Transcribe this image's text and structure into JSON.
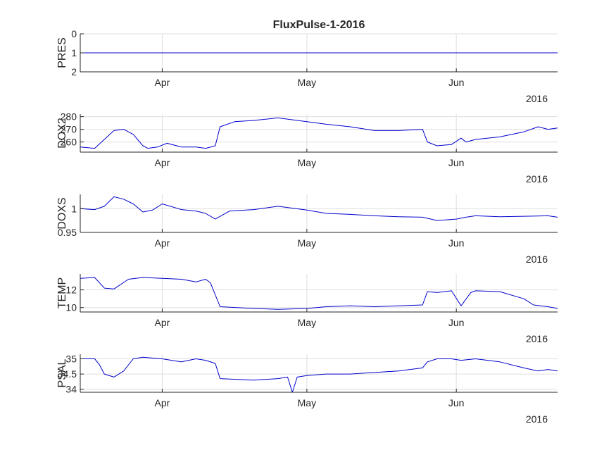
{
  "figure": {
    "title": "FluxPulse-1-2016",
    "year_label": "2016",
    "line_color": "#0000cc",
    "grid_color": "#dfdfdf",
    "axis_color": "#262626"
  },
  "chart_data": [
    {
      "type": "line",
      "ylabel": "PRES",
      "ylim": [
        0,
        2
      ],
      "y_reverse": true,
      "yticks": [
        0,
        1,
        2
      ],
      "ytick_labels": [
        "0",
        "1",
        "2"
      ],
      "x_range": [
        "2016-03-15",
        "2016-06-22"
      ],
      "xticks": [
        "2016-04-01",
        "2016-05-01",
        "2016-06-01"
      ],
      "xtick_labels": [
        "Apr",
        "May",
        "Jun"
      ],
      "grid": true,
      "series": [
        {
          "x": [
            "2016-03-15",
            "2016-06-22"
          ],
          "y": [
            1,
            1
          ]
        }
      ]
    },
    {
      "type": "line",
      "ylabel": "DOX2",
      "ylim": [
        252,
        282
      ],
      "y_reverse": false,
      "yticks": [
        260,
        270,
        280
      ],
      "ytick_labels": [
        "260",
        "270",
        "280"
      ],
      "x_range": [
        "2016-03-15",
        "2016-06-22"
      ],
      "xticks": [
        "2016-04-01",
        "2016-05-01",
        "2016-06-01"
      ],
      "xtick_labels": [
        "Apr",
        "May",
        "Jun"
      ],
      "grid": true,
      "series": [
        {
          "x": [
            "2016-03-15",
            "2016-03-18",
            "2016-03-20",
            "2016-03-22",
            "2016-03-24",
            "2016-03-26",
            "2016-03-28",
            "2016-03-29",
            "2016-03-31",
            "2016-04-02",
            "2016-04-05",
            "2016-04-08",
            "2016-04-10",
            "2016-04-12",
            "2016-04-13",
            "2016-04-16",
            "2016-04-20",
            "2016-04-25",
            "2016-05-01",
            "2016-05-05",
            "2016-05-10",
            "2016-05-15",
            "2016-05-20",
            "2016-05-25",
            "2016-05-26",
            "2016-05-28",
            "2016-05-31",
            "2016-06-02",
            "2016-06-03",
            "2016-06-05",
            "2016-06-10",
            "2016-06-15",
            "2016-06-18",
            "2016-06-20",
            "2016-06-22"
          ],
          "y": [
            256,
            255,
            262,
            269,
            270,
            266,
            257,
            255,
            256,
            259,
            256,
            256,
            255,
            257,
            272,
            276,
            277,
            279,
            276,
            274,
            272,
            269,
            269,
            270,
            260,
            257,
            258,
            263,
            260,
            262,
            264,
            268,
            272,
            270,
            271
          ]
        }
      ]
    },
    {
      "type": "line",
      "ylabel": "DOXS",
      "ylim": [
        0.95,
        1.03
      ],
      "y_reverse": false,
      "yticks": [
        0.95,
        1
      ],
      "ytick_labels": [
        "0.95",
        "1"
      ],
      "x_range": [
        "2016-03-15",
        "2016-06-22"
      ],
      "xticks": [
        "2016-04-01",
        "2016-05-01",
        "2016-06-01"
      ],
      "xtick_labels": [
        "Apr",
        "May",
        "Jun"
      ],
      "grid": true,
      "series": [
        {
          "x": [
            "2016-03-15",
            "2016-03-18",
            "2016-03-20",
            "2016-03-22",
            "2016-03-24",
            "2016-03-26",
            "2016-03-28",
            "2016-03-30",
            "2016-04-01",
            "2016-04-05",
            "2016-04-08",
            "2016-04-10",
            "2016-04-12",
            "2016-04-15",
            "2016-04-20",
            "2016-04-25",
            "2016-05-01",
            "2016-05-05",
            "2016-05-10",
            "2016-05-15",
            "2016-05-20",
            "2016-05-25",
            "2016-05-28",
            "2016-06-01",
            "2016-06-03",
            "2016-06-05",
            "2016-06-10",
            "2016-06-15",
            "2016-06-20",
            "2016-06-22"
          ],
          "y": [
            1.0,
            0.998,
            1.005,
            1.025,
            1.02,
            1.01,
            0.993,
            0.997,
            1.01,
            0.998,
            0.995,
            0.99,
            0.978,
            0.995,
            0.998,
            1.005,
            0.997,
            0.99,
            0.988,
            0.985,
            0.983,
            0.982,
            0.975,
            0.978,
            0.982,
            0.985,
            0.983,
            0.984,
            0.985,
            0.982
          ]
        }
      ]
    },
    {
      "type": "line",
      "ylabel": "TEMP",
      "ylim": [
        9.5,
        13.8
      ],
      "y_reverse": false,
      "yticks": [
        10,
        12
      ],
      "ytick_labels": [
        "10",
        "12"
      ],
      "x_range": [
        "2016-03-15",
        "2016-06-22"
      ],
      "xticks": [
        "2016-04-01",
        "2016-05-01",
        "2016-06-01"
      ],
      "xtick_labels": [
        "Apr",
        "May",
        "Jun"
      ],
      "grid": true,
      "series": [
        {
          "x": [
            "2016-03-15",
            "2016-03-18",
            "2016-03-20",
            "2016-03-22",
            "2016-03-25",
            "2016-03-28",
            "2016-04-01",
            "2016-04-05",
            "2016-04-08",
            "2016-04-10",
            "2016-04-11",
            "2016-04-13",
            "2016-04-20",
            "2016-04-25",
            "2016-05-01",
            "2016-05-05",
            "2016-05-10",
            "2016-05-15",
            "2016-05-20",
            "2016-05-25",
            "2016-05-26",
            "2016-05-28",
            "2016-05-31",
            "2016-06-02",
            "2016-06-04",
            "2016-06-05",
            "2016-06-10",
            "2016-06-15",
            "2016-06-17",
            "2016-06-20",
            "2016-06-22"
          ],
          "y": [
            13.3,
            13.4,
            12.2,
            12.1,
            13.2,
            13.4,
            13.3,
            13.2,
            12.9,
            13.2,
            12.8,
            10.1,
            9.9,
            9.8,
            9.9,
            10.1,
            10.2,
            10.1,
            10.2,
            10.3,
            11.8,
            11.7,
            11.9,
            10.2,
            11.7,
            11.9,
            11.8,
            11.0,
            10.3,
            10.1,
            9.9
          ]
        }
      ]
    },
    {
      "type": "line",
      "ylabel": "PSAL",
      "ylim": [
        33.9,
        35.15
      ],
      "y_reverse": false,
      "yticks": [
        34,
        34.5,
        35
      ],
      "ytick_labels": [
        "34",
        "34.5",
        "35"
      ],
      "x_range": [
        "2016-03-15",
        "2016-06-22"
      ],
      "xticks": [
        "2016-04-01",
        "2016-05-01",
        "2016-06-01"
      ],
      "xtick_labels": [
        "Apr",
        "May",
        "Jun"
      ],
      "grid": true,
      "series": [
        {
          "x": [
            "2016-03-15",
            "2016-03-18",
            "2016-03-19",
            "2016-03-20",
            "2016-03-22",
            "2016-03-24",
            "2016-03-26",
            "2016-03-28",
            "2016-04-01",
            "2016-04-05",
            "2016-04-08",
            "2016-04-10",
            "2016-04-12",
            "2016-04-13",
            "2016-04-20",
            "2016-04-25",
            "2016-04-27",
            "2016-04-28",
            "2016-04-29",
            "2016-05-01",
            "2016-05-05",
            "2016-05-10",
            "2016-05-15",
            "2016-05-20",
            "2016-05-25",
            "2016-05-26",
            "2016-05-28",
            "2016-05-31",
            "2016-06-02",
            "2016-06-05",
            "2016-06-10",
            "2016-06-15",
            "2016-06-18",
            "2016-06-20",
            "2016-06-22"
          ],
          "y": [
            35.0,
            35.0,
            34.8,
            34.5,
            34.4,
            34.6,
            35.0,
            35.05,
            35.0,
            34.9,
            35.0,
            34.95,
            34.85,
            34.35,
            34.3,
            34.35,
            34.4,
            33.9,
            34.4,
            34.45,
            34.5,
            34.5,
            34.55,
            34.6,
            34.7,
            34.9,
            35.0,
            35.0,
            34.95,
            35.0,
            34.9,
            34.7,
            34.6,
            34.65,
            34.6
          ]
        }
      ]
    }
  ]
}
